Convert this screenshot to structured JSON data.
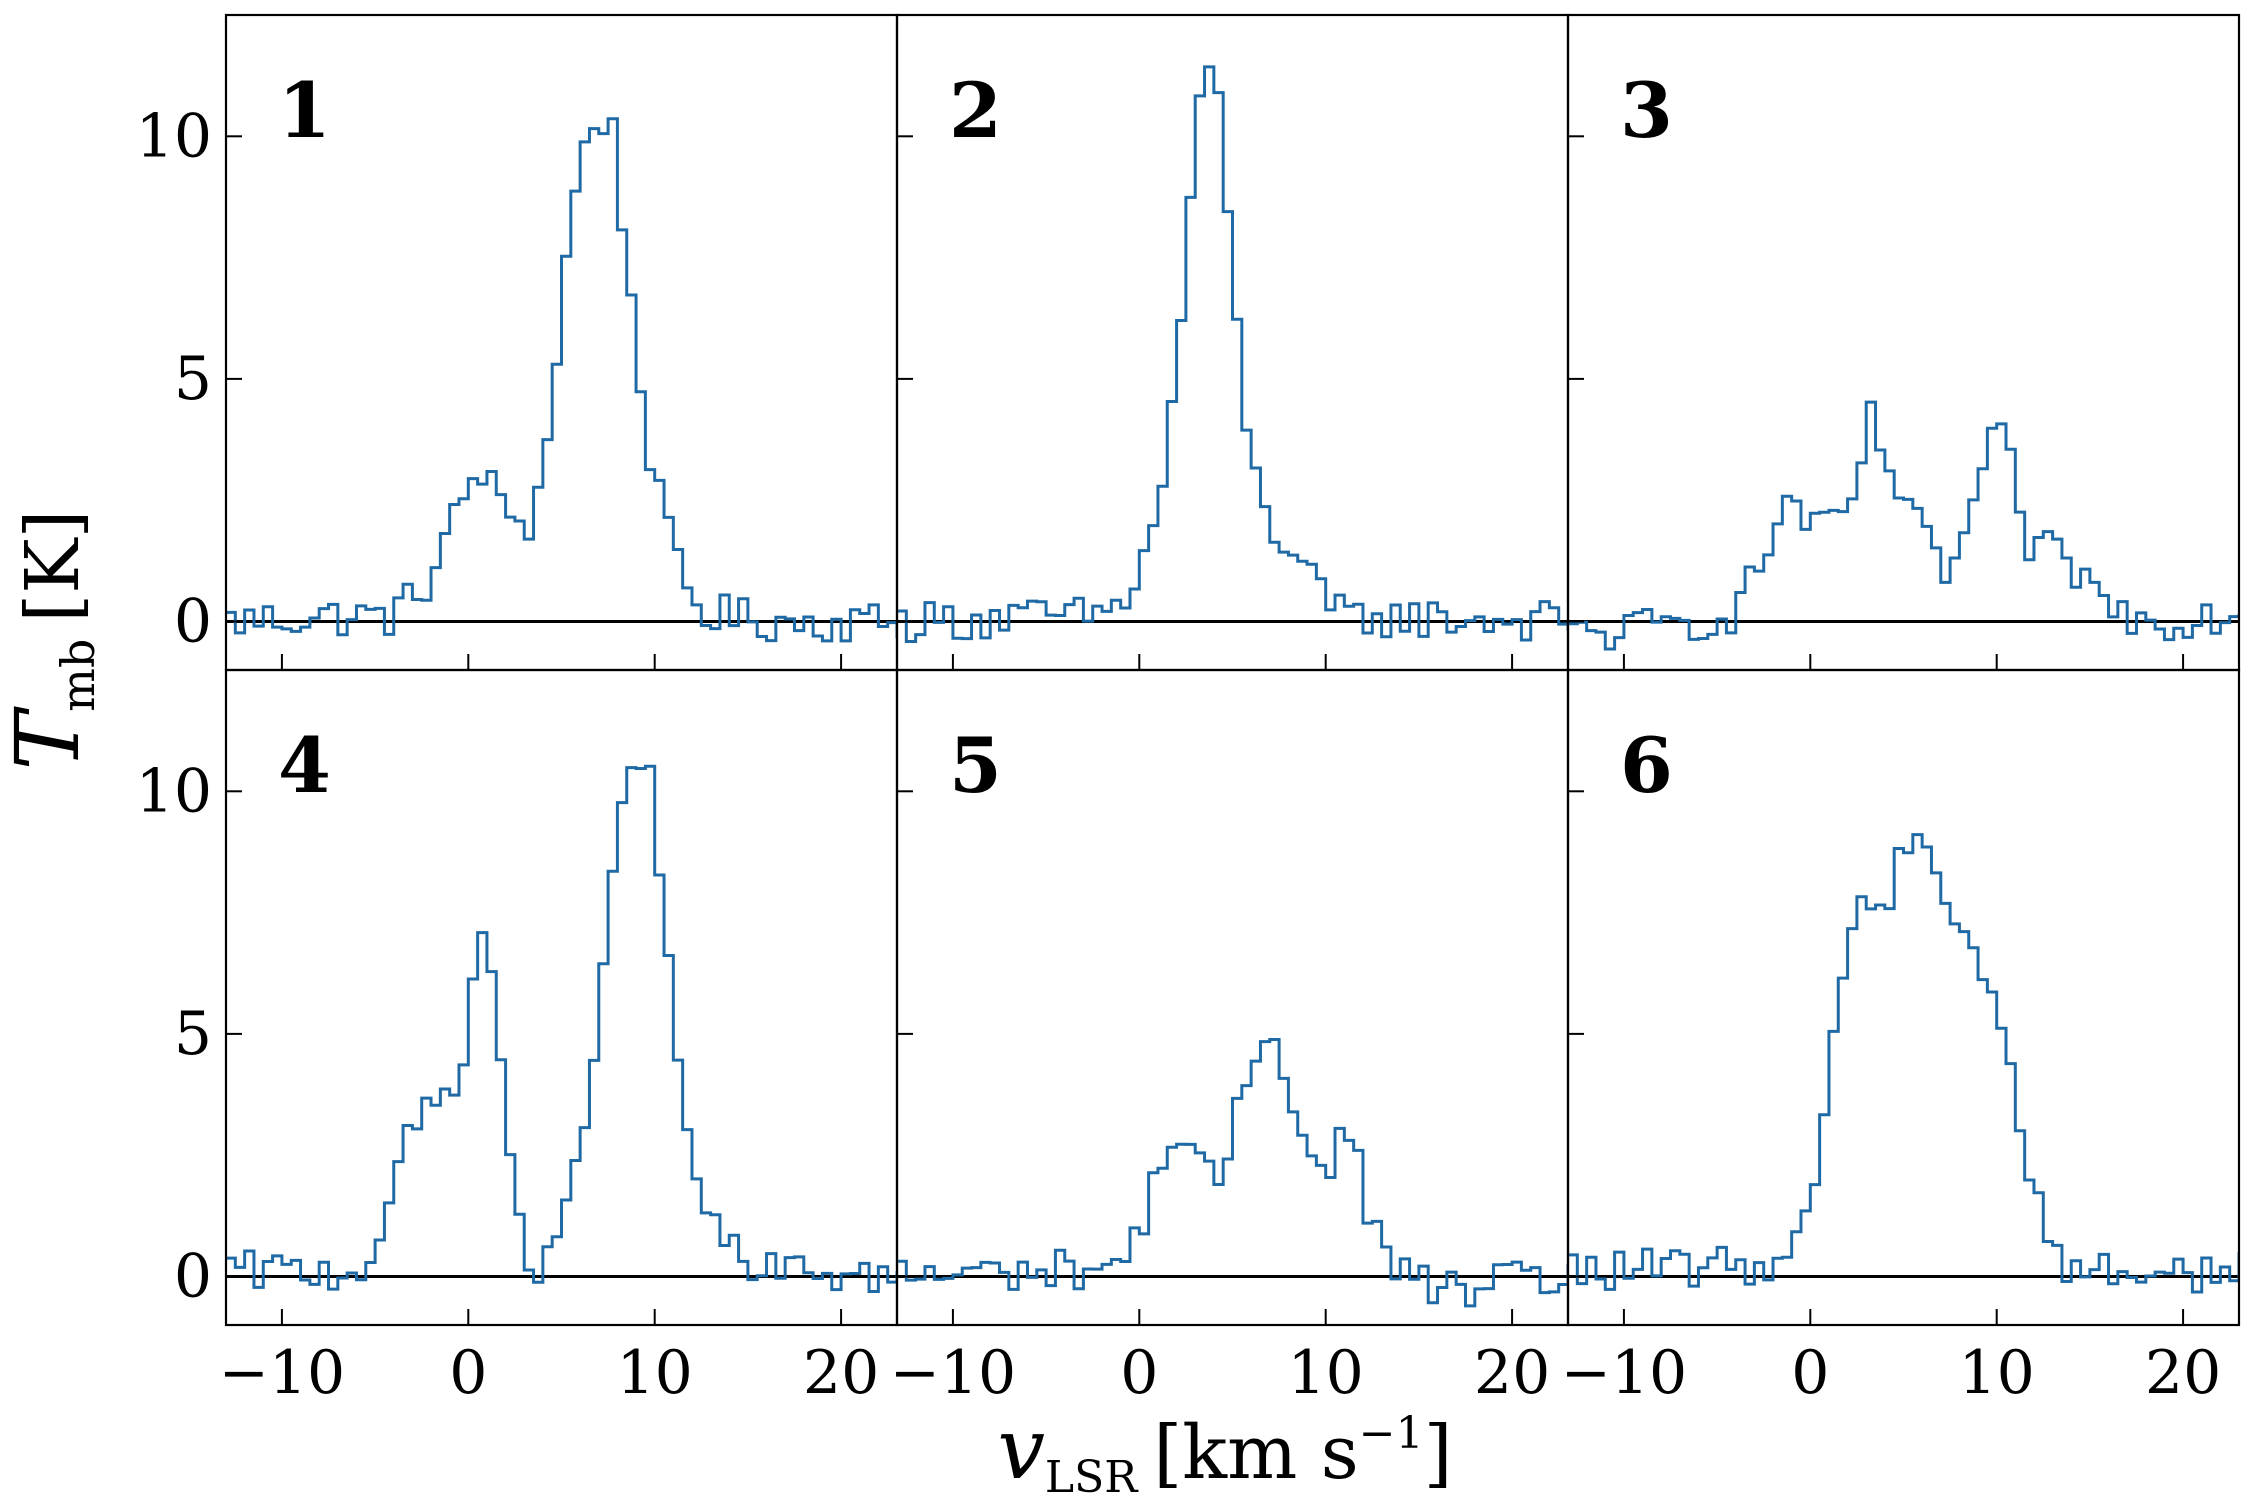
{
  "figure": {
    "xlabel_main": "v",
    "xlabel_sub": "LSR",
    "xlabel_units": "[km s",
    "xlabel_exp": "−1",
    "xlabel_close": "]",
    "ylabel_main": "T",
    "ylabel_sub": "mb",
    "ylabel_units": "[K]",
    "line_color": "#1f6aa5"
  },
  "chart_data": [
    {
      "type": "line",
      "panel": "1",
      "xlim": [
        -13,
        23
      ],
      "ylim": [
        -1,
        12.5
      ],
      "xticks": [
        -10,
        0,
        10,
        20
      ],
      "yticks": [
        0,
        5,
        10
      ],
      "grid": false,
      "peaks": [
        [
          -13,
          0.0
        ],
        [
          -8,
          0.1
        ],
        [
          -4,
          0.1
        ],
        [
          -2,
          0.9
        ],
        [
          0,
          2.8
        ],
        [
          1,
          3.2
        ],
        [
          1.6,
          2.3
        ],
        [
          3.5,
          2.0
        ],
        [
          4.5,
          4.5
        ],
        [
          5.5,
          8.4
        ],
        [
          6.5,
          10.2
        ],
        [
          7.2,
          10.4
        ],
        [
          7.8,
          10.0
        ],
        [
          8.5,
          7.5
        ],
        [
          9.5,
          4.0
        ],
        [
          10.5,
          2.0
        ],
        [
          11.5,
          0.9
        ],
        [
          12.5,
          0.2
        ],
        [
          16,
          0.0
        ],
        [
          23,
          0.0
        ]
      ]
    },
    {
      "type": "line",
      "panel": "2",
      "xlim": [
        -13,
        23
      ],
      "ylim": [
        -1,
        12.5
      ],
      "xticks": [
        -10,
        0,
        10,
        20
      ],
      "yticks": [
        0,
        5,
        10
      ],
      "grid": false,
      "peaks": [
        [
          -13,
          0.0
        ],
        [
          -3,
          0.1
        ],
        [
          -1,
          0.3
        ],
        [
          0,
          1.0
        ],
        [
          1,
          2.2
        ],
        [
          2,
          5.0
        ],
        [
          2.8,
          9.0
        ],
        [
          3.5,
          11.8
        ],
        [
          4.2,
          10.8
        ],
        [
          5,
          7.0
        ],
        [
          6,
          3.2
        ],
        [
          7,
          2.0
        ],
        [
          8,
          1.6
        ],
        [
          9,
          1.0
        ],
        [
          10,
          0.3
        ],
        [
          11,
          0.1
        ],
        [
          23,
          0.0
        ]
      ]
    },
    {
      "type": "line",
      "panel": "3",
      "xlim": [
        -13,
        23
      ],
      "ylim": [
        -1,
        12.5
      ],
      "xticks": [
        -10,
        0,
        10,
        20
      ],
      "yticks": [
        0,
        5,
        10
      ],
      "grid": false,
      "peaks": [
        [
          -13,
          -0.3
        ],
        [
          -10,
          -0.2
        ],
        [
          -6,
          0.0
        ],
        [
          -4,
          0.2
        ],
        [
          -3,
          0.9
        ],
        [
          -2,
          1.8
        ],
        [
          -1.2,
          2.5
        ],
        [
          -0.3,
          2.2
        ],
        [
          0.6,
          1.8
        ],
        [
          1.6,
          2.0
        ],
        [
          2.5,
          2.8
        ],
        [
          3.3,
          4.2
        ],
        [
          4.2,
          3.2
        ],
        [
          5.2,
          2.3
        ],
        [
          6.2,
          1.6
        ],
        [
          7.2,
          1.0
        ],
        [
          8.2,
          1.6
        ],
        [
          9.2,
          3.1
        ],
        [
          9.9,
          3.8
        ],
        [
          10.6,
          3.5
        ],
        [
          11.5,
          1.6
        ],
        [
          13,
          1.4
        ],
        [
          14.5,
          1.0
        ],
        [
          16,
          0.3
        ],
        [
          18,
          0.0
        ],
        [
          23,
          0.2
        ]
      ]
    },
    {
      "type": "line",
      "panel": "4",
      "xlim": [
        -13,
        23
      ],
      "ylim": [
        -1,
        12.5
      ],
      "xticks": [
        -10,
        0,
        10,
        20
      ],
      "yticks": [
        0,
        5,
        10
      ],
      "grid": false,
      "peaks": [
        [
          -13,
          0.1
        ],
        [
          -7,
          0.1
        ],
        [
          -5.5,
          0.2
        ],
        [
          -4.5,
          1.2
        ],
        [
          -3.5,
          2.5
        ],
        [
          -2.5,
          3.3
        ],
        [
          -1.5,
          3.6
        ],
        [
          -0.5,
          4.3
        ],
        [
          0.2,
          5.6
        ],
        [
          0.9,
          7.6
        ],
        [
          1.6,
          5.0
        ],
        [
          2.4,
          2.0
        ],
        [
          3.2,
          0.2
        ],
        [
          4.5,
          0.2
        ],
        [
          5.5,
          1.6
        ],
        [
          6.5,
          4.0
        ],
        [
          7.5,
          7.5
        ],
        [
          8.5,
          10.0
        ],
        [
          9.1,
          11.0
        ],
        [
          9.8,
          10.2
        ],
        [
          10.5,
          7.2
        ],
        [
          11.5,
          3.5
        ],
        [
          12.5,
          1.6
        ],
        [
          13.5,
          0.8
        ],
        [
          15,
          0.1
        ],
        [
          18,
          0.1
        ],
        [
          23,
          0.0
        ]
      ]
    },
    {
      "type": "line",
      "panel": "5",
      "xlim": [
        -13,
        23
      ],
      "ylim": [
        -1,
        12.5
      ],
      "xticks": [
        -10,
        0,
        10,
        20
      ],
      "yticks": [
        0,
        5,
        10
      ],
      "grid": false,
      "peaks": [
        [
          -13,
          0.0
        ],
        [
          -6,
          0.1
        ],
        [
          -2,
          0.2
        ],
        [
          -0.5,
          0.4
        ],
        [
          0.5,
          1.5
        ],
        [
          1.3,
          2.7
        ],
        [
          2.5,
          2.8
        ],
        [
          3.3,
          2.2
        ],
        [
          4.2,
          1.8
        ],
        [
          5.2,
          3.2
        ],
        [
          6.2,
          4.6
        ],
        [
          7.0,
          5.3
        ],
        [
          7.8,
          4.4
        ],
        [
          8.6,
          3.0
        ],
        [
          9.6,
          2.0
        ],
        [
          10.6,
          2.7
        ],
        [
          11.4,
          2.9
        ],
        [
          12.4,
          1.2
        ],
        [
          13.5,
          0.2
        ],
        [
          16,
          -0.3
        ],
        [
          23,
          0.0
        ]
      ]
    },
    {
      "type": "line",
      "panel": "6",
      "xlim": [
        -13,
        23
      ],
      "ylim": [
        -1,
        12.5
      ],
      "xticks": [
        -10,
        0,
        10,
        20
      ],
      "yticks": [
        0,
        5,
        10
      ],
      "grid": false,
      "peaks": [
        [
          -13,
          0.1
        ],
        [
          -4,
          0.2
        ],
        [
          -1,
          0.4
        ],
        [
          0,
          1.4
        ],
        [
          1,
          4.3
        ],
        [
          2,
          7.0
        ],
        [
          3,
          7.9
        ],
        [
          3.8,
          7.4
        ],
        [
          4.8,
          8.6
        ],
        [
          5.6,
          9.5
        ],
        [
          6.4,
          8.8
        ],
        [
          7.4,
          7.6
        ],
        [
          8.4,
          7.0
        ],
        [
          9.3,
          6.3
        ],
        [
          10.2,
          5.2
        ],
        [
          11,
          3.6
        ],
        [
          12,
          1.8
        ],
        [
          13,
          0.7
        ],
        [
          14,
          0.1
        ],
        [
          23,
          0.1
        ]
      ]
    }
  ]
}
